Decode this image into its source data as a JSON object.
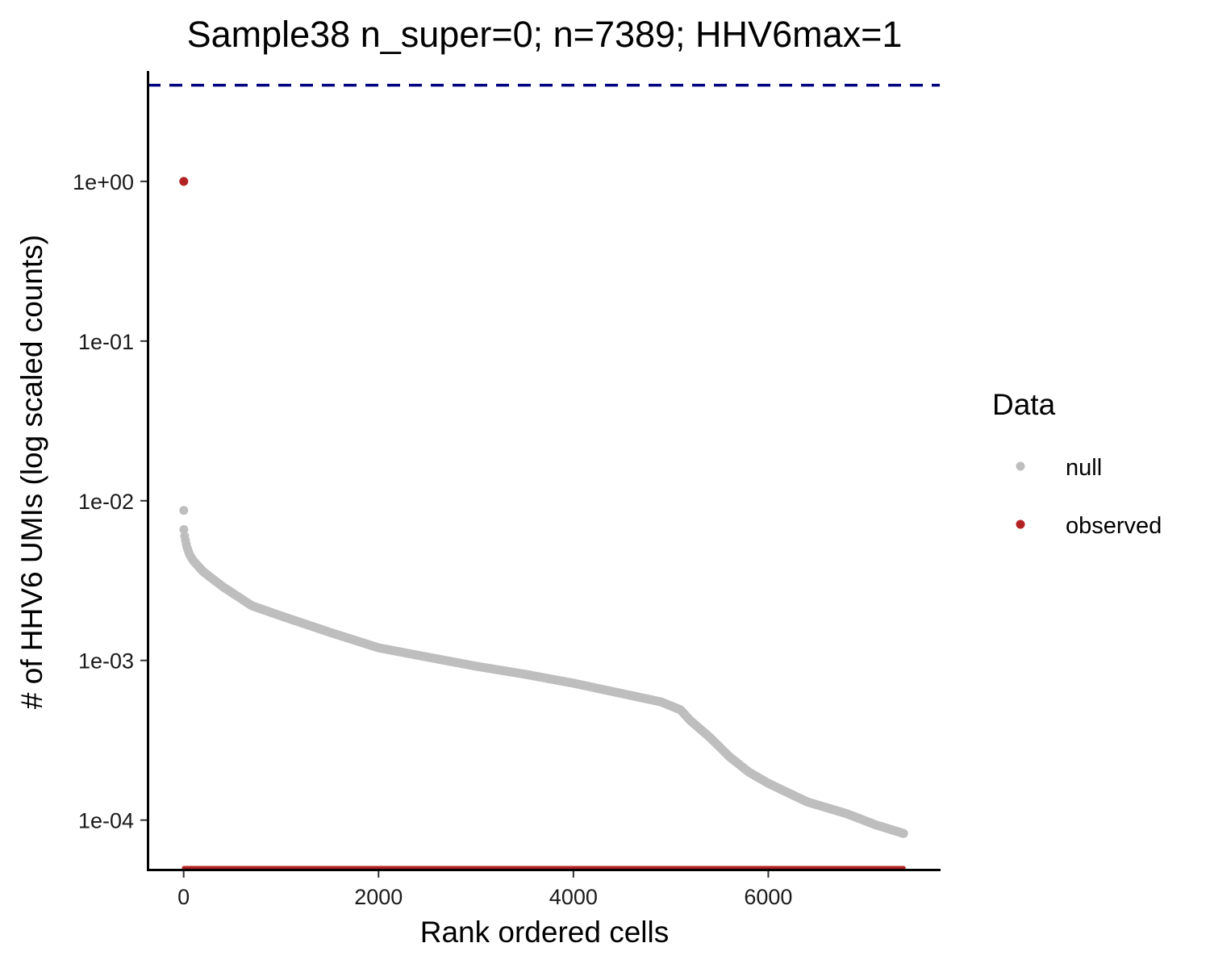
{
  "chart_data": {
    "type": "scatter",
    "title": "Sample38 n_super=0; n=7389; HHV6max=1",
    "xlabel": "Rank ordered cells",
    "ylabel": "# of HHV6 UMIs (log scaled counts)",
    "y_scale": "log10",
    "xlim": [
      -370,
      7760
    ],
    "ylim": [
      4.9e-05,
      4.8
    ],
    "x_ticks": [
      0,
      2000,
      4000,
      6000
    ],
    "x_tick_labels": [
      "0",
      "2000",
      "4000",
      "6000"
    ],
    "y_ticks": [
      0.0001,
      0.001,
      0.01,
      0.1,
      1
    ],
    "y_tick_labels": [
      "1e-04",
      "1e-03",
      "1e-02",
      "1e-01",
      "1e+00"
    ],
    "grid": false,
    "threshold_line": {
      "y": 4,
      "color": "#000080",
      "style": "dashed"
    },
    "legend": {
      "title": "Data",
      "position": "right",
      "entries": [
        {
          "label": "null",
          "color": "#bebebe"
        },
        {
          "label": "observed",
          "color": "#b22222"
        }
      ]
    },
    "series": [
      {
        "name": "null",
        "color": "#bebebe",
        "n": 7389,
        "curve_points": [
          {
            "x": 1,
            "y": 0.0087
          },
          {
            "x": 2,
            "y": 0.0066
          },
          {
            "x": 10,
            "y": 0.006
          },
          {
            "x": 30,
            "y": 0.0052
          },
          {
            "x": 60,
            "y": 0.0046
          },
          {
            "x": 100,
            "y": 0.0042
          },
          {
            "x": 200,
            "y": 0.0036
          },
          {
            "x": 400,
            "y": 0.0029
          },
          {
            "x": 700,
            "y": 0.0022
          },
          {
            "x": 1000,
            "y": 0.0019
          },
          {
            "x": 1500,
            "y": 0.0015
          },
          {
            "x": 2000,
            "y": 0.0012
          },
          {
            "x": 2500,
            "y": 0.00105
          },
          {
            "x": 3000,
            "y": 0.00092
          },
          {
            "x": 3500,
            "y": 0.00082
          },
          {
            "x": 4000,
            "y": 0.00072
          },
          {
            "x": 4500,
            "y": 0.00062
          },
          {
            "x": 4900,
            "y": 0.00055
          },
          {
            "x": 5100,
            "y": 0.00049
          },
          {
            "x": 5200,
            "y": 0.00042
          },
          {
            "x": 5400,
            "y": 0.00033
          },
          {
            "x": 5600,
            "y": 0.00025
          },
          {
            "x": 5800,
            "y": 0.0002
          },
          {
            "x": 6000,
            "y": 0.00017
          },
          {
            "x": 6400,
            "y": 0.00013
          },
          {
            "x": 6800,
            "y": 0.00011
          },
          {
            "x": 7100,
            "y": 9.35e-05
          },
          {
            "x": 7389,
            "y": 8.25e-05
          }
        ]
      },
      {
        "name": "observed",
        "color": "#b22222",
        "points": [
          {
            "x": 1,
            "y": 1
          }
        ],
        "zero_count_range": [
          2,
          7389
        ]
      }
    ]
  }
}
